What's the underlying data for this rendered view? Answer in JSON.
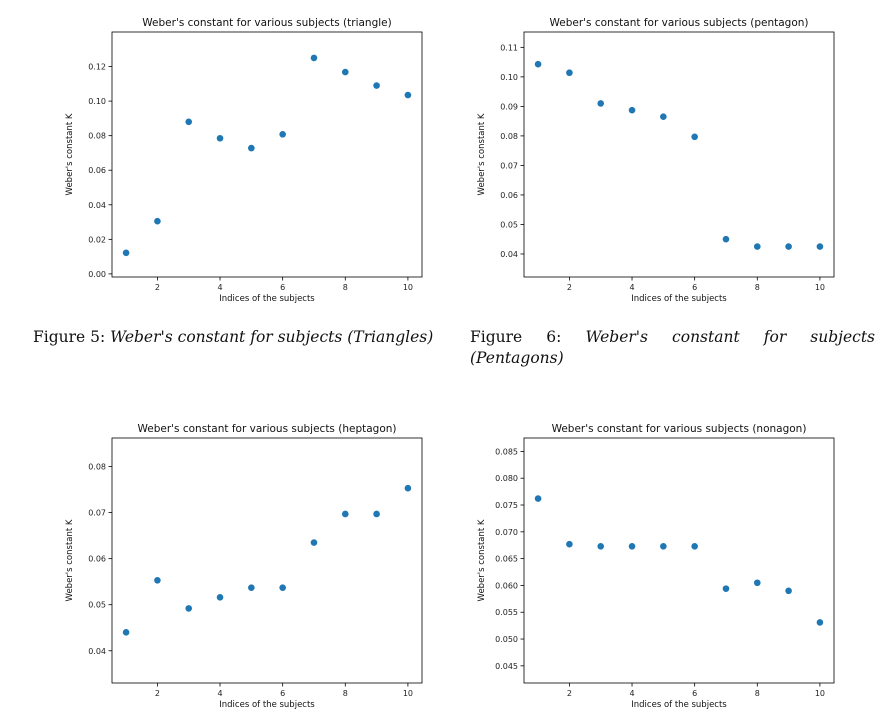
{
  "chart_data": [
    {
      "type": "scatter",
      "title": "Weber's constant for various subjects (triangle)",
      "xlabel": "Indices of the subjects",
      "ylabel": "Weber's constant K",
      "x": [
        1,
        2,
        3,
        4,
        5,
        6,
        7,
        8,
        9,
        10
      ],
      "y": [
        0.0122,
        0.0305,
        0.088,
        0.0785,
        0.0728,
        0.0808,
        0.125,
        0.1168,
        0.109,
        0.1035
      ],
      "xticks": [
        2,
        4,
        6,
        8,
        10
      ],
      "yticks": [
        0.0,
        0.02,
        0.04,
        0.06,
        0.08,
        0.1,
        0.12
      ],
      "xtick_labels": [
        "2",
        "4",
        "6",
        "8",
        "10"
      ],
      "ytick_labels": [
        "0.00",
        "0.02",
        "0.04",
        "0.06",
        "0.08",
        "0.10",
        "0.12"
      ],
      "xlim": [
        0.55,
        10.45
      ],
      "ylim": [
        -0.0018,
        0.14
      ],
      "grid": false,
      "marker_color": "#1f77b4"
    },
    {
      "type": "scatter",
      "title": "Weber's constant for various subjects (pentagon)",
      "xlabel": "Indices of the subjects",
      "ylabel": "Weber's constant K",
      "x": [
        1,
        2,
        3,
        4,
        5,
        6,
        7,
        8,
        9,
        10
      ],
      "y": [
        0.1043,
        0.1014,
        0.091,
        0.0887,
        0.0865,
        0.0797,
        0.045,
        0.0425,
        0.0425,
        0.0425
      ],
      "xticks": [
        2,
        4,
        6,
        8,
        10
      ],
      "yticks": [
        0.04,
        0.05,
        0.06,
        0.07,
        0.08,
        0.09,
        0.1,
        0.11
      ],
      "xtick_labels": [
        "2",
        "4",
        "6",
        "8",
        "10"
      ],
      "ytick_labels": [
        "0.04",
        "0.05",
        "0.06",
        "0.07",
        "0.08",
        "0.09",
        "0.10",
        "0.11"
      ],
      "xlim": [
        0.55,
        10.45
      ],
      "ylim": [
        0.0322,
        0.1152
      ],
      "grid": false,
      "marker_color": "#1f77b4"
    },
    {
      "type": "scatter",
      "title": "Weber's constant for various subjects (heptagon)",
      "xlabel": "Indices of the subjects",
      "ylabel": "Weber's constant K",
      "x": [
        1,
        2,
        3,
        4,
        5,
        6,
        7,
        8,
        9,
        10
      ],
      "y": [
        0.044,
        0.0553,
        0.0492,
        0.0516,
        0.0537,
        0.0537,
        0.0635,
        0.0697,
        0.0697,
        0.0753
      ],
      "xticks": [
        2,
        4,
        6,
        8,
        10
      ],
      "yticks": [
        0.04,
        0.05,
        0.06,
        0.07,
        0.08
      ],
      "xtick_labels": [
        "2",
        "4",
        "6",
        "8",
        "10"
      ],
      "ytick_labels": [
        "0.04",
        "0.05",
        "0.06",
        "0.07",
        "0.08"
      ],
      "xlim": [
        0.55,
        10.45
      ],
      "ylim": [
        0.033,
        0.0862
      ],
      "grid": false,
      "marker_color": "#1f77b4"
    },
    {
      "type": "scatter",
      "title": "Weber's constant for various subjects (nonagon)",
      "xlabel": "Indices of the subjects",
      "ylabel": "Weber's constant K",
      "x": [
        1,
        2,
        3,
        4,
        5,
        6,
        7,
        8,
        9,
        10
      ],
      "y": [
        0.0762,
        0.0677,
        0.0673,
        0.0673,
        0.0673,
        0.0673,
        0.0594,
        0.0605,
        0.059,
        0.0531
      ],
      "xticks": [
        2,
        4,
        6,
        8,
        10
      ],
      "yticks": [
        0.045,
        0.05,
        0.055,
        0.06,
        0.065,
        0.07,
        0.075,
        0.08,
        0.085
      ],
      "xtick_labels": [
        "2",
        "4",
        "6",
        "8",
        "10"
      ],
      "ytick_labels": [
        "0.045",
        "0.050",
        "0.055",
        "0.060",
        "0.065",
        "0.070",
        "0.075",
        "0.080",
        "0.085"
      ],
      "xlim": [
        0.55,
        10.45
      ],
      "ylim": [
        0.0418,
        0.0875
      ],
      "grid": false,
      "marker_color": "#1f77b4"
    }
  ],
  "captions": [
    {
      "prefix": "Figure 5:",
      "italic": "Weber's constant for subjects (Triangles)"
    },
    {
      "prefix": "Figure 6:",
      "italic": "Weber's constant for subjects (Pentagons)"
    }
  ]
}
